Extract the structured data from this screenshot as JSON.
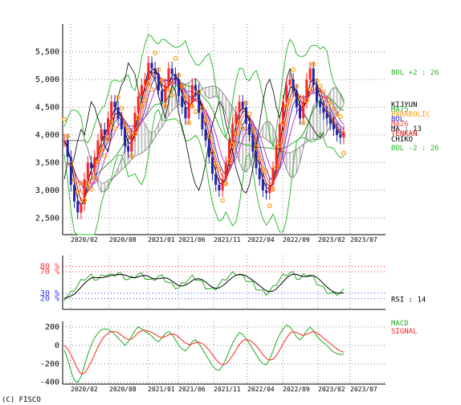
{
  "copyright": "(C) FISCO",
  "chart_data": [
    {
      "type": "candlestick",
      "panel": "price",
      "ylim": [
        2200,
        6000
      ],
      "y_ticks": [
        "5,500",
        "5,000",
        "4,500",
        "4,000",
        "3,500",
        "3,000",
        "2,500"
      ],
      "y_tick_values": [
        5500,
        5000,
        4500,
        4000,
        3500,
        3000,
        2500
      ],
      "x_ticks": [
        "2020/02",
        "2020/08",
        "2021/01",
        "2021/06",
        "2021/11",
        "2022/04",
        "2022/09",
        "2023/02",
        "2023/07"
      ],
      "grid": true,
      "legend_right": [
        {
          "label": "BOL +2 : 26",
          "color": "#22bb22"
        },
        {
          "label": "KIJYUN",
          "color": "#000000"
        },
        {
          "label": "MA75",
          "color": "#22aa22"
        },
        {
          "label": "PARABOLIC",
          "color": "#ff9900"
        },
        {
          "label": "BOL",
          "color": "#2222cc"
        },
        {
          "label": "MA26",
          "color": "#ff4444"
        },
        {
          "label": "MA : 13",
          "color": "#000000"
        },
        {
          "label": "TENKAN",
          "color": "#cc0000"
        },
        {
          "label": "CHIKO",
          "color": "#000000"
        },
        {
          "label": "BOL -2 : 26",
          "color": "#22bb22"
        }
      ],
      "colors": {
        "up": "#ff2222",
        "down": "#2222aa",
        "cloud": "#aaaaaa",
        "parabolic": "#ff9900"
      },
      "close": [
        3900,
        3600,
        3100,
        2800,
        2600,
        2750,
        3200,
        3500,
        3400,
        3600,
        3900,
        4100,
        4000,
        4300,
        4600,
        4500,
        4300,
        4100,
        3800,
        3700,
        4000,
        4400,
        4700,
        4900,
        5000,
        5300,
        5200,
        5100,
        4800,
        4600,
        4900,
        5200,
        5100,
        5000,
        4700,
        4500,
        4300,
        4600,
        4900,
        4800,
        4400,
        4100,
        3900,
        3600,
        3300,
        3100,
        3000,
        3200,
        3500,
        3900,
        4200,
        4400,
        4600,
        4500,
        4200,
        4000,
        3700,
        3400,
        3200,
        3000,
        2950,
        3100,
        3400,
        3800,
        4200,
        4600,
        4900,
        5000,
        4800,
        4500,
        4300,
        4600,
        5000,
        5200,
        4900,
        4600,
        4500,
        4400,
        4300,
        4200,
        4100,
        4000,
        3950,
        4050
      ]
    },
    {
      "type": "line",
      "panel": "rsi",
      "ylim": [
        0,
        100
      ],
      "y_ticks": [
        "80 %",
        "70 %",
        "30 %",
        "20 %"
      ],
      "y_tick_values": [
        80,
        70,
        30,
        20
      ],
      "x_ticks": [
        "2020/02",
        "2020/08",
        "2021/01",
        "2021/06",
        "2021/11",
        "2022/04",
        "2022/09",
        "2023/02",
        "2023/07"
      ],
      "legend_right": [
        {
          "label": "RSI : 14",
          "color": "#000000"
        }
      ],
      "series_values": [
        20,
        25,
        30,
        38,
        45,
        52,
        58,
        60,
        62,
        58,
        55,
        60,
        66,
        64,
        62,
        65,
        68,
        63,
        60,
        55,
        58,
        62,
        66,
        64,
        60,
        56,
        52,
        58,
        62,
        60,
        55,
        50,
        45,
        42,
        40,
        46,
        52,
        56,
        60,
        58,
        54,
        48,
        42,
        38,
        36,
        40,
        46,
        52,
        58,
        62,
        66,
        68,
        64,
        60,
        56,
        52,
        48,
        40,
        36,
        32,
        30,
        34,
        40,
        48,
        56,
        62,
        66,
        68,
        66,
        60,
        56,
        62,
        66,
        64,
        58,
        50,
        44,
        38,
        34,
        30,
        28,
        30,
        32,
        34
      ]
    },
    {
      "type": "line",
      "panel": "macd",
      "ylim": [
        -420,
        260
      ],
      "y_ticks": [
        "200",
        "0",
        "-200",
        "-400"
      ],
      "y_tick_values": [
        200,
        0,
        -200,
        -400
      ],
      "x_ticks": [
        "2020/02",
        "2020/08",
        "2021/01",
        "2021/06",
        "2021/11",
        "2022/04",
        "2022/09",
        "2023/02",
        "2023/07"
      ],
      "legend_right": [
        {
          "label": "MACD",
          "color": "#22aa22"
        },
        {
          "label": "SIGNAL",
          "color": "#ff2222"
        }
      ],
      "series": [
        {
          "name": "MACD",
          "color": "#22aa22",
          "values": [
            -50,
            -150,
            -280,
            -380,
            -400,
            -340,
            -220,
            -100,
            0,
            80,
            130,
            170,
            180,
            170,
            150,
            120,
            80,
            40,
            0,
            40,
            100,
            160,
            200,
            180,
            150,
            130,
            100,
            60,
            40,
            80,
            130,
            150,
            120,
            60,
            0,
            -40,
            -60,
            -20,
            40,
            60,
            20,
            -40,
            -100,
            -160,
            -220,
            -260,
            -270,
            -220,
            -150,
            -60,
            20,
            90,
            140,
            120,
            70,
            20,
            -40,
            -100,
            -160,
            -200,
            -210,
            -150,
            -60,
            40,
            120,
            180,
            220,
            200,
            150,
            90,
            60,
            100,
            160,
            200,
            160,
            100,
            60,
            30,
            0,
            -40,
            -70,
            -90,
            -100,
            -95
          ]
        },
        {
          "name": "SIGNAL",
          "color": "#ff2222",
          "values": [
            0,
            -40,
            -100,
            -180,
            -260,
            -310,
            -300,
            -250,
            -180,
            -100,
            -20,
            50,
            100,
            130,
            150,
            150,
            140,
            110,
            80,
            60,
            70,
            100,
            140,
            160,
            165,
            155,
            140,
            120,
            95,
            85,
            95,
            115,
            125,
            115,
            90,
            55,
            25,
            10,
            15,
            30,
            35,
            20,
            -10,
            -50,
            -100,
            -150,
            -190,
            -210,
            -200,
            -160,
            -110,
            -50,
            10,
            50,
            65,
            55,
            30,
            -5,
            -50,
            -100,
            -140,
            -160,
            -150,
            -110,
            -50,
            20,
            80,
            130,
            150,
            140,
            120,
            110,
            120,
            140,
            150,
            135,
            110,
            80,
            50,
            20,
            -10,
            -40,
            -60,
            -75
          ]
        }
      ]
    }
  ]
}
